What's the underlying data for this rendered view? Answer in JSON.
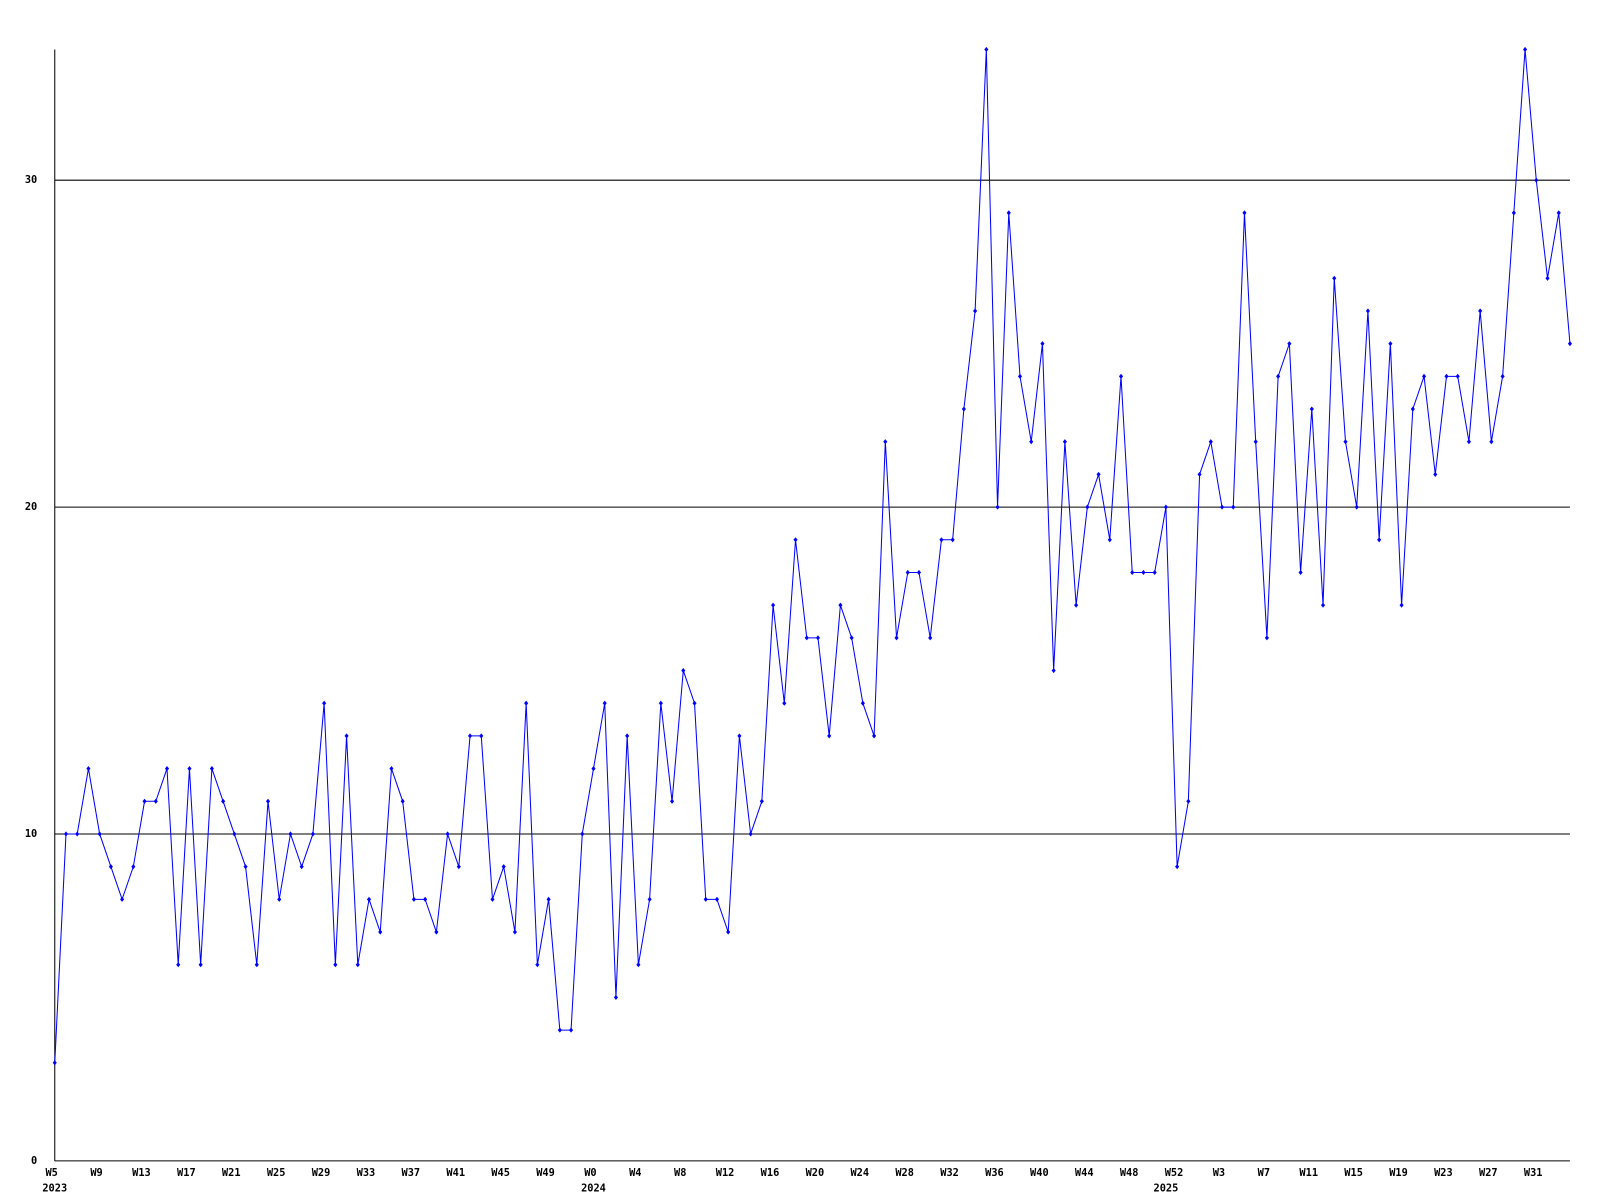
{
  "chart_data": {
    "type": "line",
    "categories": [
      "W5",
      null,
      null,
      null,
      "W9",
      null,
      null,
      null,
      "W13",
      null,
      null,
      null,
      "W17",
      null,
      null,
      null,
      "W21",
      null,
      null,
      null,
      "W25",
      null,
      null,
      null,
      "W29",
      null,
      null,
      null,
      "W33",
      null,
      null,
      null,
      "W37",
      null,
      null,
      null,
      "W41",
      null,
      null,
      null,
      "W45",
      null,
      null,
      null,
      "W49",
      null,
      null,
      null,
      "W0",
      null,
      null,
      null,
      "W4",
      null,
      null,
      null,
      "W8",
      null,
      null,
      null,
      "W12",
      null,
      null,
      null,
      "W16",
      null,
      null,
      null,
      "W20",
      null,
      null,
      null,
      "W24",
      null,
      null,
      null,
      "W28",
      null,
      null,
      null,
      "W32",
      null,
      null,
      null,
      "W36",
      null,
      null,
      null,
      "W40",
      null,
      null,
      null,
      "W44",
      null,
      null,
      null,
      "W48",
      null,
      null,
      null,
      "W52",
      null,
      null,
      null,
      "W3",
      null,
      null,
      null,
      "W7",
      null,
      null,
      null,
      "W11",
      null,
      null,
      null,
      "W15",
      null,
      null,
      null,
      "W19",
      null,
      null,
      null,
      "W23",
      null,
      null,
      null,
      "W27",
      null,
      null,
      null,
      "W31",
      null,
      null,
      null
    ],
    "category_years": [
      "2023",
      null,
      null,
      null,
      null,
      null,
      null,
      null,
      null,
      null,
      null,
      null,
      null,
      null,
      null,
      null,
      null,
      null,
      null,
      null,
      null,
      null,
      null,
      null,
      null,
      null,
      null,
      null,
      null,
      null,
      null,
      null,
      null,
      null,
      null,
      null,
      null,
      null,
      null,
      null,
      null,
      null,
      null,
      null,
      null,
      null,
      null,
      null,
      "2024",
      null,
      null,
      null,
      null,
      null,
      null,
      null,
      null,
      null,
      null,
      null,
      null,
      null,
      null,
      null,
      null,
      null,
      null,
      null,
      null,
      null,
      null,
      null,
      null,
      null,
      null,
      null,
      null,
      null,
      null,
      null,
      null,
      null,
      null,
      null,
      null,
      null,
      null,
      null,
      null,
      null,
      null,
      null,
      null,
      null,
      null,
      null,
      null,
      null,
      null,
      "2025",
      null,
      null,
      null,
      null,
      null,
      null,
      null,
      null,
      null,
      null,
      null,
      null,
      null,
      null,
      null,
      null,
      null,
      null,
      null,
      null,
      null,
      null,
      null,
      null,
      null,
      null,
      null,
      null,
      null,
      null,
      null,
      null,
      null,
      null
    ],
    "series": [
      {
        "color": "#0000ff",
        "values": [
          3,
          10,
          10,
          12,
          10,
          9,
          8,
          9,
          11,
          11,
          12,
          6,
          12,
          6,
          12,
          11,
          10,
          9,
          6,
          11,
          8,
          10,
          9,
          10,
          14,
          6,
          13,
          6,
          8,
          7,
          12,
          11,
          8,
          8,
          7,
          10,
          9,
          13,
          13,
          8,
          9,
          7,
          14,
          6,
          8,
          4,
          4,
          10,
          12,
          14,
          5,
          13,
          6,
          8,
          14,
          11,
          15,
          14,
          8,
          8,
          7,
          13,
          10,
          11,
          17,
          14,
          19,
          16,
          16,
          13,
          17,
          16,
          14,
          13,
          22,
          16,
          18,
          18,
          16,
          19,
          19,
          23,
          26,
          34,
          20,
          29,
          24,
          22,
          25,
          15,
          22,
          17,
          20,
          21,
          19,
          24,
          18,
          18,
          18,
          20,
          9,
          11,
          21,
          22,
          20,
          20,
          29,
          22,
          16,
          24,
          25,
          18,
          23,
          17,
          27,
          22,
          20,
          26,
          19,
          25,
          17,
          23,
          24,
          21,
          24,
          24,
          22,
          26,
          22,
          24,
          29,
          34,
          30,
          27,
          29,
          25
        ]
      }
    ],
    "ylim": [
      0,
      34
    ],
    "yticks": [
      0,
      10,
      20,
      30
    ],
    "grid": true
  }
}
